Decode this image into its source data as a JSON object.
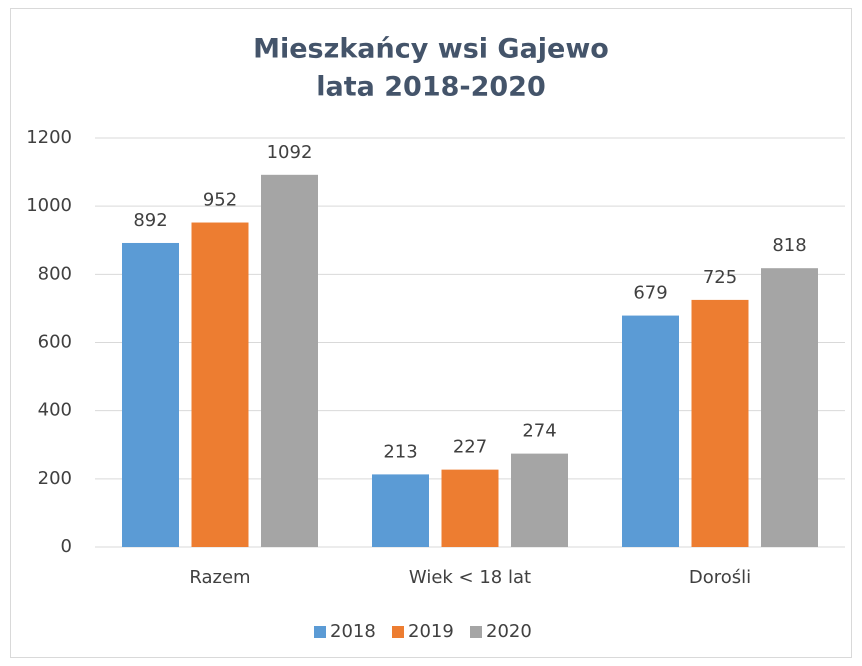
{
  "chart_data": {
    "type": "bar",
    "title": "Mieszkańcy wsi Gajewo",
    "subtitle": "lata 2018-2020",
    "categories": [
      "Razem",
      "Wiek < 18 lat",
      "Dorośli"
    ],
    "series": [
      {
        "name": "2018",
        "color": "#5b9bd5",
        "values": [
          892,
          213,
          679
        ]
      },
      {
        "name": "2019",
        "color": "#ed7d31",
        "values": [
          952,
          227,
          725
        ]
      },
      {
        "name": "2020",
        "color": "#a5a5a5",
        "values": [
          1092,
          274,
          818
        ]
      }
    ],
    "ylim": [
      0,
      1200
    ],
    "yticks": [
      0,
      200,
      400,
      600,
      800,
      1000,
      1200
    ],
    "grid": true,
    "legend": "bottom"
  }
}
